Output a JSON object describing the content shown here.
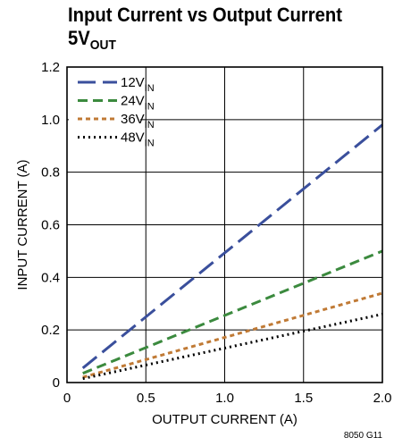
{
  "title_line1": "Input Current vs Output Current",
  "title_line2_main": "5V",
  "title_line2_sub": "OUT",
  "figure_id": "8050 G11",
  "chart_data": {
    "type": "line",
    "xlabel": "OUTPUT CURRENT (A)",
    "ylabel": "INPUT CURRENT (A)",
    "xlim": [
      0,
      2.0
    ],
    "ylim": [
      0,
      1.2
    ],
    "xticks": [
      "0",
      "0.5",
      "1.0",
      "1.5",
      "2.0"
    ],
    "yticks": [
      "0",
      "0.2",
      "0.4",
      "0.6",
      "0.8",
      "1.0",
      "1.2"
    ],
    "grid": true,
    "legend_position": "top-left",
    "series": [
      {
        "name_main": "12V",
        "name_sub": "IN",
        "color": "#3a4f9c",
        "dash": "20,8",
        "x": [
          0.1,
          2.0
        ],
        "y": [
          0.055,
          0.98
        ]
      },
      {
        "name_main": "24V",
        "name_sub": "IN",
        "color": "#3b8a3e",
        "dash": "11,6",
        "x": [
          0.1,
          2.0
        ],
        "y": [
          0.035,
          0.5
        ]
      },
      {
        "name_main": "36V",
        "name_sub": "IN",
        "color": "#c07a35",
        "dash": "5,4",
        "x": [
          0.1,
          2.0
        ],
        "y": [
          0.02,
          0.34
        ]
      },
      {
        "name_main": "48V",
        "name_sub": "IN",
        "color": "#000000",
        "dash": "2,4",
        "x": [
          0.1,
          2.0
        ],
        "y": [
          0.015,
          0.26
        ]
      }
    ]
  }
}
